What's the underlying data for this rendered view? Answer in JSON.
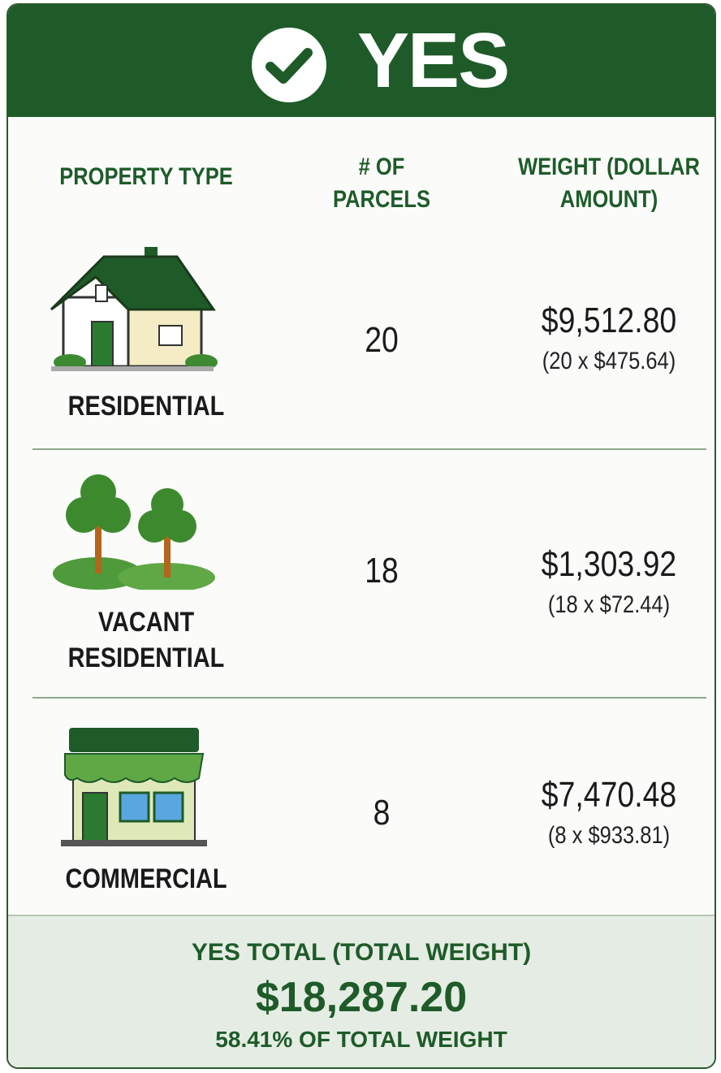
{
  "header": {
    "title": "YES"
  },
  "columns": [
    "PROPERTY TYPE",
    "# OF PARCELS",
    "WEIGHT (DOLLAR AMOUNT)"
  ],
  "rows": [
    {
      "type": "RESIDENTIAL",
      "parcels": 20,
      "weight": "$9,512.80",
      "formula": "(20 x $475.64)"
    },
    {
      "type": "VACANT RESIDENTIAL",
      "parcels": 18,
      "weight": "$1,303.92",
      "formula": "(18 x $72.44)"
    },
    {
      "type": "COMMERCIAL",
      "parcels": 8,
      "weight": "$7,470.48",
      "formula": "(8 x $933.81)"
    }
  ],
  "footer": {
    "label": "YES TOTAL (TOTAL WEIGHT)",
    "total": "$18,287.20",
    "share": "58.41% OF TOTAL WEIGHT"
  }
}
